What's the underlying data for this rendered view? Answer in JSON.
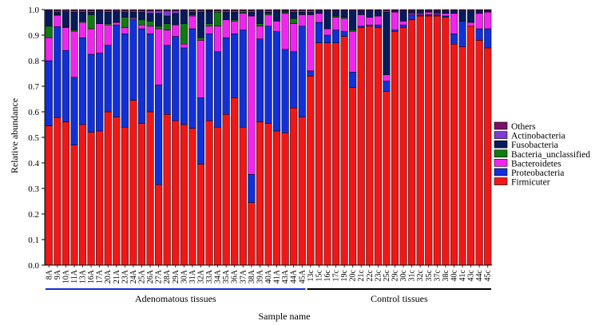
{
  "colors": {
    "Others": "#7a0f66",
    "Actinobacteria": "#7c3bd3",
    "Fusobacteria": "#071a5c",
    "Bacteria_unclassified": "#137a13",
    "Bacteroidetes": "#f225f0",
    "Proteobacteria": "#1230d8",
    "Firmicuter": "#f21717",
    "adenomatous_bracket": "#1230d8",
    "control_bracket": "#000000"
  },
  "chart_data": {
    "type": "bar",
    "stacked": true,
    "xlabel": "Sample name",
    "ylabel": "Relative abundance",
    "ylim": [
      0,
      1
    ],
    "yticks": [
      "0.0",
      "0.1",
      "0.2",
      "0.3",
      "0.4",
      "0.5",
      "0.6",
      "0.7",
      "0.8",
      "0.9",
      "1.0"
    ],
    "legend_position": "right",
    "categories": [
      "8A",
      "9A",
      "10A",
      "11A",
      "13A",
      "16A",
      "17A",
      "20A",
      "21A",
      "23A",
      "24A",
      "25A",
      "26A",
      "27A",
      "28A",
      "29A",
      "30A",
      "31A",
      "32A",
      "33A",
      "34A",
      "35A",
      "36A",
      "37A",
      "38A",
      "39A",
      "40A",
      "41A",
      "43A",
      "44A",
      "45A",
      "13c",
      "15c",
      "16c",
      "17c",
      "19c",
      "20c",
      "21c",
      "22c",
      "23c",
      "25c",
      "29c",
      "30c",
      "31c",
      "32c",
      "35c",
      "37c",
      "38c",
      "40c",
      "41c",
      "43c",
      "44c",
      "45c"
    ],
    "groups": [
      {
        "label": "Adenomatous tissues",
        "from": 0,
        "to": 30
      },
      {
        "label": "Control tissues",
        "from": 31,
        "to": 52
      }
    ],
    "series": [
      {
        "name": "Firmicuter",
        "values": [
          0.545,
          0.578,
          0.56,
          0.47,
          0.55,
          0.52,
          0.525,
          0.6,
          0.58,
          0.54,
          0.645,
          0.555,
          0.6,
          0.315,
          0.59,
          0.565,
          0.55,
          0.535,
          0.395,
          0.565,
          0.54,
          0.59,
          0.655,
          0.54,
          0.245,
          0.56,
          0.555,
          0.525,
          0.515,
          0.615,
          0.58,
          0.74,
          0.87,
          0.87,
          0.87,
          0.895,
          0.695,
          0.93,
          0.935,
          0.93,
          0.68,
          0.915,
          0.93,
          0.96,
          0.975,
          0.975,
          0.975,
          0.97,
          0.865,
          0.855,
          0.935,
          0.88,
          0.85
        ]
      },
      {
        "name": "Proteobacteria",
        "values": [
          0.255,
          0.355,
          0.28,
          0.265,
          0.34,
          0.305,
          0.305,
          0.26,
          0.36,
          0.365,
          0.315,
          0.37,
          0.305,
          0.39,
          0.27,
          0.33,
          0.3,
          0.39,
          0.26,
          0.34,
          0.295,
          0.3,
          0.25,
          0.38,
          0.11,
          0.325,
          0.38,
          0.39,
          0.325,
          0.22,
          0.355,
          0.02,
          0.08,
          0.03,
          0.05,
          0.02,
          0.06,
          0.005,
          0.005,
          0.01,
          0.04,
          0.005,
          0.01,
          0.02,
          0.005,
          0.005,
          0.005,
          0.005,
          0.04,
          0.1,
          0.0,
          0.045,
          0.075
        ]
      },
      {
        "name": "Bacteroidetes",
        "values": [
          0.09,
          0.045,
          0.09,
          0.18,
          0.06,
          0.1,
          0.115,
          0.08,
          0.01,
          0.025,
          0.005,
          0.015,
          0.03,
          0.22,
          0.06,
          0.045,
          0.015,
          0.05,
          0.225,
          0.03,
          0.1,
          0.07,
          0.05,
          0.065,
          0.62,
          0.05,
          0.045,
          0.04,
          0.14,
          0.11,
          0.045,
          0.22,
          0.035,
          0.025,
          0.05,
          0.05,
          0.16,
          0.045,
          0.03,
          0.035,
          0.025,
          0.07,
          0.015,
          0.005,
          0.005,
          0.01,
          0.005,
          0.01,
          0.08,
          0.0,
          0.015,
          0.06,
          0.065
        ]
      },
      {
        "name": "Bacteria_unclassified",
        "values": [
          0.045,
          0.002,
          0.002,
          0.005,
          0.005,
          0.055,
          0.0,
          0.005,
          0.002,
          0.04,
          0.005,
          0.02,
          0.02,
          0.01,
          0.025,
          0.0,
          0.08,
          0.005,
          0.01,
          0.01,
          0.055,
          0.0,
          0.005,
          0.005,
          0.0,
          0.01,
          0.005,
          0.0,
          0.005,
          0.02,
          0.0,
          0.0,
          0.0,
          0.0,
          0.005,
          0.005,
          0.005,
          0.0,
          0.0,
          0.0,
          0.0,
          0.0,
          0.0,
          0.0,
          0.0,
          0.0,
          0.0,
          0.0,
          0.0,
          0.0,
          0.0,
          0.0,
          0.0
        ]
      },
      {
        "name": "Fusobacteria",
        "values": [
          0.06,
          0.01,
          0.06,
          0.07,
          0.035,
          0.01,
          0.05,
          0.045,
          0.04,
          0.02,
          0.02,
          0.03,
          0.03,
          0.05,
          0.03,
          0.045,
          0.05,
          0.01,
          0.1,
          0.05,
          0.0,
          0.03,
          0.03,
          0.0,
          0.015,
          0.05,
          0.005,
          0.04,
          0.005,
          0.025,
          0.01,
          0.01,
          0.01,
          0.07,
          0.02,
          0.025,
          0.075,
          0.015,
          0.025,
          0.02,
          0.245,
          0.005,
          0.04,
          0.01,
          0.01,
          0.005,
          0.01,
          0.01,
          0.01,
          0.04,
          0.045,
          0.01,
          0.005
        ]
      },
      {
        "name": "Actinobacteria",
        "values": [
          0.003,
          0.005,
          0.004,
          0.005,
          0.005,
          0.005,
          0.003,
          0.005,
          0.004,
          0.005,
          0.005,
          0.005,
          0.01,
          0.01,
          0.02,
          0.01,
          0.003,
          0.005,
          0.005,
          0.002,
          0.005,
          0.005,
          0.005,
          0.005,
          0.005,
          0.003,
          0.005,
          0.003,
          0.003,
          0.005,
          0.005,
          0.005,
          0.003,
          0.003,
          0.003,
          0.003,
          0.003,
          0.003,
          0.003,
          0.003,
          0.005,
          0.003,
          0.003,
          0.003,
          0.003,
          0.003,
          0.003,
          0.003,
          0.003,
          0.003,
          0.003,
          0.003,
          0.003
        ]
      },
      {
        "name": "Others",
        "values": [
          0.002,
          0.005,
          0.004,
          0.005,
          0.005,
          0.005,
          0.002,
          0.005,
          0.004,
          0.005,
          0.005,
          0.005,
          0.005,
          0.005,
          0.005,
          0.005,
          0.002,
          0.005,
          0.005,
          0.003,
          0.005,
          0.005,
          0.005,
          0.005,
          0.005,
          0.002,
          0.005,
          0.002,
          0.002,
          0.005,
          0.005,
          0.005,
          0.002,
          0.002,
          0.002,
          0.002,
          0.002,
          0.002,
          0.002,
          0.002,
          0.005,
          0.002,
          0.002,
          0.002,
          0.002,
          0.002,
          0.002,
          0.002,
          0.002,
          0.002,
          0.002,
          0.002,
          0.002
        ]
      }
    ],
    "legend_order": [
      "Others",
      "Actinobacteria",
      "Fusobacteria",
      "Bacteria_unclassified",
      "Bacteroidetes",
      "Proteobacteria",
      "Firmicuter"
    ]
  }
}
